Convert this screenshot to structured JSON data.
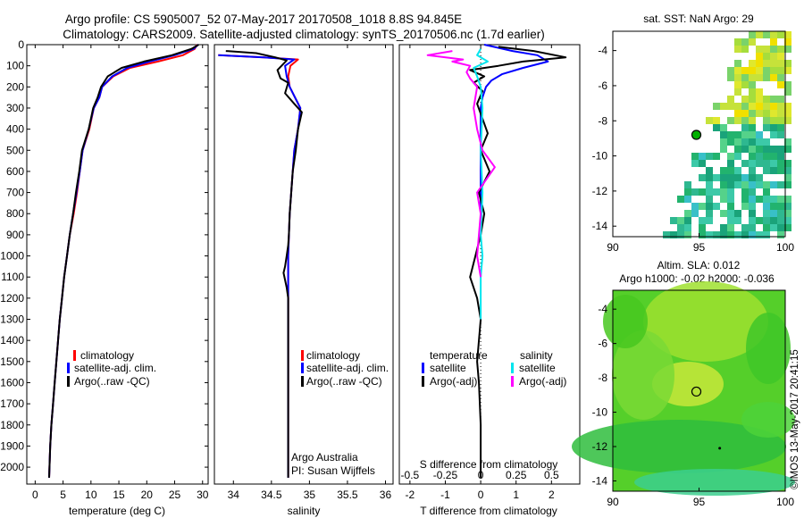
{
  "header": {
    "line1": "Argo profile: CS 5905007_52 07-May-2017 20170508_1018 8.8S 94.845E",
    "line2": "Climatology: CARS2009. Satellite-adjusted climatology: synTS_20170506.nc (1.7d earlier)"
  },
  "side_stamp": "©IMOS 13-May-2017 20:41:15",
  "colors": {
    "climatology": "#ff0000",
    "satellite": "#0000ff",
    "argo": "#000000",
    "satellite_salinity": "#00e5ee",
    "argo_salinity": "#ff00ff",
    "sst_marker": "#00b000"
  },
  "chart_data": [
    {
      "type": "line",
      "id": "temperature",
      "xlabel": "temperature (deg C)",
      "ylabel": "",
      "xlim": [
        -1.5,
        31
      ],
      "ylim": [
        2080,
        0
      ],
      "x_ticks": [
        0,
        5,
        10,
        15,
        20,
        25,
        30
      ],
      "y_ticks": [
        0,
        100,
        200,
        300,
        400,
        500,
        600,
        700,
        800,
        900,
        1000,
        1100,
        1200,
        1300,
        1400,
        1500,
        1600,
        1700,
        1800,
        1900,
        2000
      ],
      "legend": [
        "climatology",
        "satellite-adj. clim.",
        "Argo(..raw -QC)"
      ],
      "legend_position": "lower-middle",
      "series": [
        {
          "name": "climatology",
          "color": "#ff0000",
          "x": [
            29.0,
            28.6,
            26.5,
            22.0,
            17.0,
            14.0,
            12.0,
            11.5,
            10.5,
            9.7,
            8.5,
            8.0,
            7.5,
            6.9,
            6.2,
            5.7,
            5.2,
            4.8,
            4.4,
            4.1,
            3.8,
            3.5,
            3.2,
            2.9,
            2.7,
            2.5
          ],
          "y": [
            0,
            20,
            50,
            80,
            110,
            150,
            200,
            250,
            300,
            400,
            500,
            600,
            700,
            800,
            900,
            1000,
            1100,
            1200,
            1300,
            1400,
            1500,
            1600,
            1700,
            1800,
            1900,
            2050
          ]
        },
        {
          "name": "satellite-adj. clim.",
          "color": "#0000ff",
          "x": [
            29.2,
            28.4,
            25.0,
            20.5,
            16.5,
            13.8,
            12.0,
            11.5,
            10.5,
            9.6,
            8.5,
            8.0,
            7.4,
            6.8,
            6.2,
            5.7,
            5.2,
            4.8,
            4.4,
            4.1,
            3.8,
            3.5,
            3.2,
            2.9,
            2.7,
            2.5
          ],
          "y": [
            0,
            20,
            50,
            80,
            110,
            150,
            200,
            250,
            300,
            400,
            500,
            600,
            700,
            800,
            900,
            1000,
            1100,
            1200,
            1300,
            1400,
            1500,
            1600,
            1700,
            1800,
            1900,
            2050
          ]
        },
        {
          "name": "Argo(..raw -QC)",
          "color": "#000000",
          "x": [
            29.3,
            28.0,
            24.5,
            19.5,
            15.5,
            13.0,
            11.8,
            11.2,
            10.4,
            9.6,
            8.4,
            7.9,
            7.3,
            6.8,
            6.2,
            5.7,
            5.2,
            4.8,
            4.4,
            4.1,
            3.8,
            3.5,
            3.2,
            2.9,
            2.7,
            2.5
          ],
          "y": [
            0,
            20,
            50,
            80,
            110,
            150,
            200,
            250,
            300,
            400,
            500,
            600,
            700,
            800,
            900,
            1000,
            1100,
            1200,
            1300,
            1400,
            1500,
            1600,
            1700,
            1800,
            1900,
            2050
          ]
        }
      ]
    },
    {
      "type": "line",
      "id": "salinity",
      "xlabel": "salinity",
      "xlim": [
        33.75,
        36.1
      ],
      "ylim": [
        2080,
        0
      ],
      "x_ticks": [
        34,
        34.5,
        35,
        35.5,
        36
      ],
      "legend": [
        "climatology",
        "satellite-adj. clim.",
        "Argo(..raw -QC)"
      ],
      "legend_position": "lower-right",
      "annotation": [
        "Argo Australia",
        "PI: Susan Wijffels"
      ],
      "series": [
        {
          "name": "climatology",
          "color": "#ff0000",
          "x": [
            33.8,
            34.1,
            34.4,
            34.85,
            34.75,
            34.72,
            34.74,
            34.88,
            34.85,
            34.8,
            34.78,
            34.76,
            34.74,
            34.73,
            34.72,
            34.72,
            34.72,
            34.72,
            34.72,
            34.72
          ],
          "y": [
            50,
            55,
            60,
            70,
            100,
            150,
            200,
            300,
            400,
            500,
            600,
            700,
            800,
            900,
            1000,
            1200,
            1400,
            1600,
            1800,
            2050
          ]
        },
        {
          "name": "satellite-adj. clim.",
          "color": "#0000ff",
          "x": [
            33.8,
            34.1,
            34.4,
            34.8,
            34.68,
            34.7,
            34.74,
            34.88,
            34.85,
            34.8,
            34.78,
            34.76,
            34.74,
            34.73,
            34.72,
            34.72,
            34.72,
            34.72,
            34.72,
            34.72
          ],
          "y": [
            50,
            55,
            60,
            70,
            100,
            150,
            200,
            300,
            400,
            500,
            600,
            700,
            800,
            900,
            1000,
            1200,
            1400,
            1600,
            1800,
            2050
          ]
        },
        {
          "name": "Argo(..raw -QC)",
          "color": "#000000",
          "x": [
            33.9,
            34.3,
            34.55,
            34.7,
            34.58,
            34.62,
            34.72,
            34.68,
            34.8,
            34.9,
            34.85,
            34.82,
            34.78,
            34.76,
            34.74,
            34.73,
            34.72,
            34.7,
            34.68,
            34.66,
            34.7,
            34.72,
            34.72,
            34.72,
            34.72,
            34.72
          ],
          "y": [
            30,
            40,
            60,
            75,
            120,
            160,
            180,
            230,
            280,
            320,
            400,
            500,
            600,
            700,
            800,
            900,
            950,
            1000,
            1050,
            1080,
            1150,
            1200,
            1400,
            1600,
            1800,
            2050
          ]
        }
      ]
    },
    {
      "type": "line",
      "id": "differences",
      "xlabel": "T difference from climatology",
      "x2label": "S difference from climatology",
      "xlim": [
        -2.3,
        2.8
      ],
      "ylim": [
        2080,
        0
      ],
      "x_ticks": [
        -2,
        -1,
        0,
        1,
        2
      ],
      "x2_ticks": [
        -0.5,
        -0.25,
        0,
        0.25,
        0.5
      ],
      "legend": [
        "temperature",
        "satellite",
        "Argo(-adj)",
        "salinity",
        "satellite",
        "Argo(-adj)"
      ],
      "legend_position": "lower-middle",
      "series": [
        {
          "name": "satellite",
          "color": "#0000ff",
          "x": [
            0.1,
            0.9,
            1.6,
            1.9,
            1.2,
            0.6,
            0.3,
            0.15,
            0.05,
            0.0,
            0.0,
            0.0,
            0.0
          ],
          "y": [
            0,
            30,
            50,
            80,
            110,
            140,
            170,
            200,
            250,
            300,
            400,
            600,
            800
          ]
        },
        {
          "name": "Argo(-adj)",
          "color": "#000000",
          "x": [
            0.5,
            1.5,
            2.4,
            1.2,
            0.5,
            -0.3,
            0.1,
            -0.2,
            0.05,
            -0.1,
            0.05,
            0.2,
            0.0,
            0.25,
            -0.05,
            0.1,
            0.0,
            -0.15,
            -0.3,
            -0.1,
            0.0,
            -0.05,
            -0.1,
            -0.05,
            0.0,
            0.0,
            0.0
          ],
          "y": [
            10,
            30,
            60,
            80,
            100,
            120,
            150,
            180,
            220,
            280,
            350,
            420,
            500,
            600,
            700,
            800,
            900,
            1000,
            1100,
            1200,
            1300,
            1400,
            1500,
            1600,
            1800,
            1900,
            2050
          ]
        },
        {
          "name": "satellite",
          "color": "#00e5ee",
          "x": [
            0.0,
            -0.1,
            0.2,
            -0.2,
            -0.1,
            0.0,
            0.05,
            0.0,
            0.05,
            0.0,
            0.05,
            0.0,
            0.0,
            0.0
          ],
          "y": [
            20,
            50,
            80,
            110,
            150,
            200,
            300,
            500,
            700,
            900,
            1000,
            1100,
            1200,
            1300
          ]
        },
        {
          "name": "Argo(-adj)",
          "color": "#ff00ff",
          "x": [
            -0.8,
            -1.5,
            -0.5,
            -0.8,
            -0.3,
            -0.4,
            -0.3,
            -0.1,
            -0.2,
            -0.1,
            0.05,
            0.4,
            -0.1,
            0.0,
            -0.1,
            0.0
          ],
          "y": [
            30,
            50,
            70,
            80,
            100,
            130,
            160,
            200,
            300,
            400,
            500,
            580,
            700,
            800,
            1000,
            1100
          ]
        }
      ]
    },
    {
      "type": "heatmap",
      "id": "sst_map",
      "title": "sat. SST: NaN Argo: 29",
      "xlim": [
        90,
        100
      ],
      "ylim": [
        -14.6,
        -2.9
      ],
      "x_ticks": [
        90,
        95,
        100
      ],
      "y_ticks": [
        -4,
        -6,
        -8,
        -10,
        -12,
        -14
      ],
      "argo_position": {
        "lon": 94.845,
        "lat": -8.8,
        "value": 29
      }
    },
    {
      "type": "heatmap",
      "id": "sla_map",
      "title": [
        "Altim. SLA: 0.012",
        "Argo h1000: -0.02 h2000: -0.036"
      ],
      "xlim": [
        90,
        100
      ],
      "ylim": [
        -14.6,
        -2.9
      ],
      "x_ticks": [
        90,
        95,
        100
      ],
      "y_ticks": [
        -4,
        -6,
        -8,
        -10,
        -12,
        -14
      ],
      "argo_position": {
        "lon": 94.845,
        "lat": -8.8
      }
    }
  ]
}
